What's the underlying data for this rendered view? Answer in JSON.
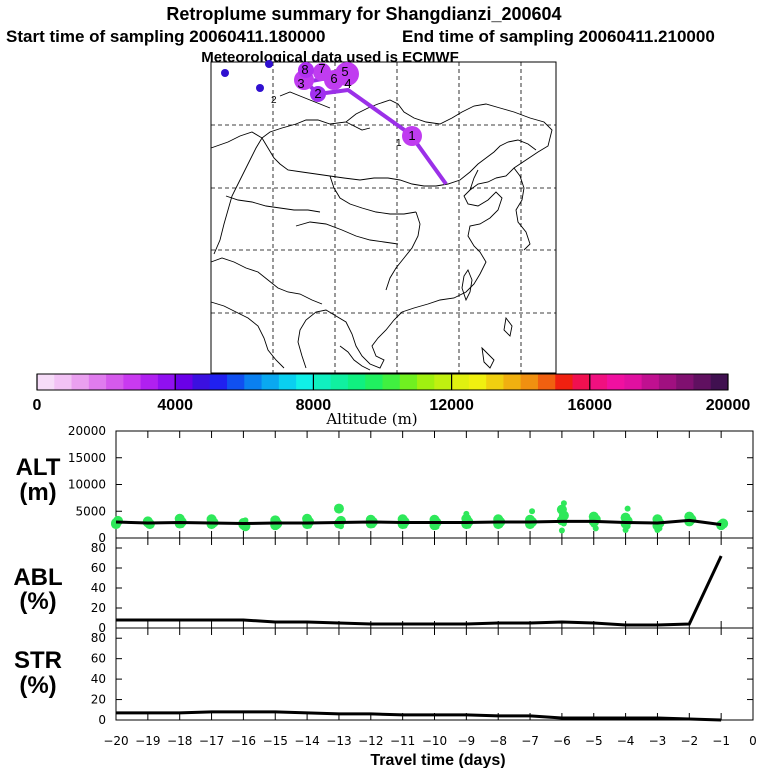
{
  "header": {
    "title": "Retroplume summary for Shangdianzi_200604",
    "start_time": "Start time of sampling 20060411.180000",
    "end_time": "End time of sampling 20060411.210000",
    "met_data": "Meteorological data used is ECMWF"
  },
  "colors": {
    "plume_track": "#9b30e8",
    "plume_marker": "#c03cf0",
    "alt_points": "#2ee85a",
    "line": "#000000"
  },
  "colorbar": {
    "label": "Altitude (m)",
    "tick_labels": [
      "0",
      "4000",
      "8000",
      "12000",
      "16000",
      "20000"
    ],
    "ticks": [
      0,
      4000,
      8000,
      12000,
      16000,
      20000
    ],
    "colors": [
      "#f6dcf8",
      "#f2c2f5",
      "#eaa0f0",
      "#e07cee",
      "#d55aec",
      "#c93af0",
      "#b020f0",
      "#9010f0",
      "#6a00e8",
      "#3b10e0",
      "#2020f0",
      "#1050f0",
      "#0a80f0",
      "#0aa8f0",
      "#0ad0f0",
      "#10f0e8",
      "#10f0c0",
      "#10f0a0",
      "#10f080",
      "#20f060",
      "#40f040",
      "#70f020",
      "#a0f010",
      "#c0f010",
      "#e0f010",
      "#f0f010",
      "#f0d010",
      "#f0b010",
      "#f09010",
      "#f06010",
      "#f02010",
      "#f01050",
      "#f01080",
      "#f010a0",
      "#e010a0",
      "#c01090",
      "#a01080",
      "#801070",
      "#601060",
      "#401050"
    ]
  },
  "map": {
    "markers": [
      {
        "label": "1",
        "day": -1
      },
      {
        "label": "2",
        "day": -2
      },
      {
        "label": "3",
        "day": -3
      },
      {
        "label": "4",
        "day": -4
      },
      {
        "label": "5",
        "day": -5
      },
      {
        "label": "6",
        "day": -6
      },
      {
        "label": "7",
        "day": -7
      },
      {
        "label": "8",
        "day": -8
      }
    ]
  },
  "chart_data": [
    {
      "type": "scatter",
      "name": "ALT",
      "ylabel": "ALT (m)",
      "ylabel_line1": "ALT",
      "ylabel_line2": "(m)",
      "ylim": [
        0,
        20000
      ],
      "yticks": [
        0,
        5000,
        10000,
        15000,
        20000
      ],
      "ytick_labels": [
        "0",
        "5000",
        "10000",
        "15000",
        "20000"
      ],
      "x": [
        -20,
        -19,
        -18,
        -17,
        -16,
        -15,
        -14,
        -13,
        -12,
        -11,
        -10,
        -9,
        -8,
        -7,
        -6,
        -5,
        -4,
        -3,
        -2,
        -1
      ],
      "mean_line": [
        3000,
        2800,
        2900,
        2800,
        2700,
        2800,
        2800,
        2900,
        3000,
        2900,
        2900,
        2900,
        3000,
        3000,
        3100,
        3100,
        2900,
        2800,
        3300,
        2500
      ],
      "point_clusters": [
        {
          "x": -20,
          "values": [
            2800,
            3200,
            2600
          ]
        },
        {
          "x": -19,
          "values": [
            2900,
            2600,
            3100
          ]
        },
        {
          "x": -18,
          "values": [
            3600,
            3000,
            2700,
            2400
          ]
        },
        {
          "x": -17,
          "values": [
            3500,
            2900,
            2600
          ]
        },
        {
          "x": -16,
          "values": [
            2500,
            2200,
            2800,
            3300
          ]
        },
        {
          "x": -15,
          "values": [
            3300,
            2700,
            2400,
            2200
          ]
        },
        {
          "x": -14,
          "values": [
            3600,
            3000,
            2600,
            2300,
            3900
          ]
        },
        {
          "x": -13,
          "values": [
            5500,
            3200,
            2700,
            2200
          ]
        },
        {
          "x": -12,
          "values": [
            3400,
            3000,
            2700,
            2400,
            3600
          ]
        },
        {
          "x": -11,
          "values": [
            3500,
            3000,
            2600,
            2300
          ]
        },
        {
          "x": -10,
          "values": [
            3400,
            2900,
            2400,
            2100
          ]
        },
        {
          "x": -9,
          "values": [
            3600,
            3000,
            2600,
            2300,
            4500
          ]
        },
        {
          "x": -8,
          "values": [
            3500,
            3000,
            2600,
            2400
          ]
        },
        {
          "x": -7,
          "values": [
            3400,
            3000,
            2600,
            5000
          ]
        },
        {
          "x": -6,
          "values": [
            5300,
            4200,
            3300,
            2700,
            1400,
            6500
          ]
        },
        {
          "x": -5,
          "values": [
            4000,
            3500,
            3100,
            2800,
            2500,
            1800
          ]
        },
        {
          "x": -4,
          "values": [
            3800,
            3200,
            2700,
            2200,
            1500,
            5500
          ]
        },
        {
          "x": -3,
          "values": [
            3500,
            2800,
            2300,
            1800,
            1500
          ]
        },
        {
          "x": -2,
          "values": [
            4000,
            3500,
            3100
          ]
        },
        {
          "x": -1,
          "values": [
            2400,
            2700
          ]
        }
      ]
    },
    {
      "type": "line",
      "name": "ABL",
      "ylabel": "ABL (%)",
      "ylabel_line1": "ABL",
      "ylabel_line2": "(%)",
      "ylim": [
        0,
        90
      ],
      "yticks": [
        0,
        20,
        40,
        60,
        80
      ],
      "ytick_labels": [
        "0",
        "20",
        "40",
        "60",
        "80"
      ],
      "x": [
        -20,
        -19,
        -18,
        -17,
        -16,
        -15,
        -14,
        -13,
        -12,
        -11,
        -10,
        -9,
        -8,
        -7,
        -6,
        -5,
        -4,
        -3,
        -2,
        -1
      ],
      "values": [
        8,
        8,
        8,
        8,
        8,
        6,
        6,
        5,
        4,
        4,
        4,
        4,
        5,
        5,
        6,
        5,
        3,
        3,
        4,
        72
      ]
    },
    {
      "type": "line",
      "name": "STR",
      "ylabel": "STR (%)",
      "ylabel_line1": "STR",
      "ylabel_line2": "(%)",
      "ylim": [
        0,
        90
      ],
      "yticks": [
        0,
        20,
        40,
        60,
        80
      ],
      "ytick_labels": [
        "0",
        "20",
        "40",
        "60",
        "80"
      ],
      "x": [
        -20,
        -19,
        -18,
        -17,
        -16,
        -15,
        -14,
        -13,
        -12,
        -11,
        -10,
        -9,
        -8,
        -7,
        -6,
        -5,
        -4,
        -3,
        -2,
        -1
      ],
      "values": [
        7,
        7,
        7,
        8,
        8,
        8,
        7,
        6,
        6,
        5,
        5,
        5,
        4,
        4,
        2,
        2,
        2,
        2,
        1,
        0
      ]
    }
  ],
  "xaxis": {
    "label": "Travel time (days)",
    "ticks": [
      -20,
      -19,
      -18,
      -17,
      -16,
      -15,
      -14,
      -13,
      -12,
      -11,
      -10,
      -9,
      -8,
      -7,
      -6,
      -5,
      -4,
      -3,
      -2,
      -1,
      0
    ],
    "tick_labels": [
      "−20",
      "−19",
      "−18",
      "−17",
      "−16",
      "−15",
      "−14",
      "−13",
      "−12",
      "−11",
      "−10",
      "−9",
      "−8",
      "−7",
      "−6",
      "−5",
      "−4",
      "−3",
      "−2",
      "−1",
      "0"
    ]
  }
}
